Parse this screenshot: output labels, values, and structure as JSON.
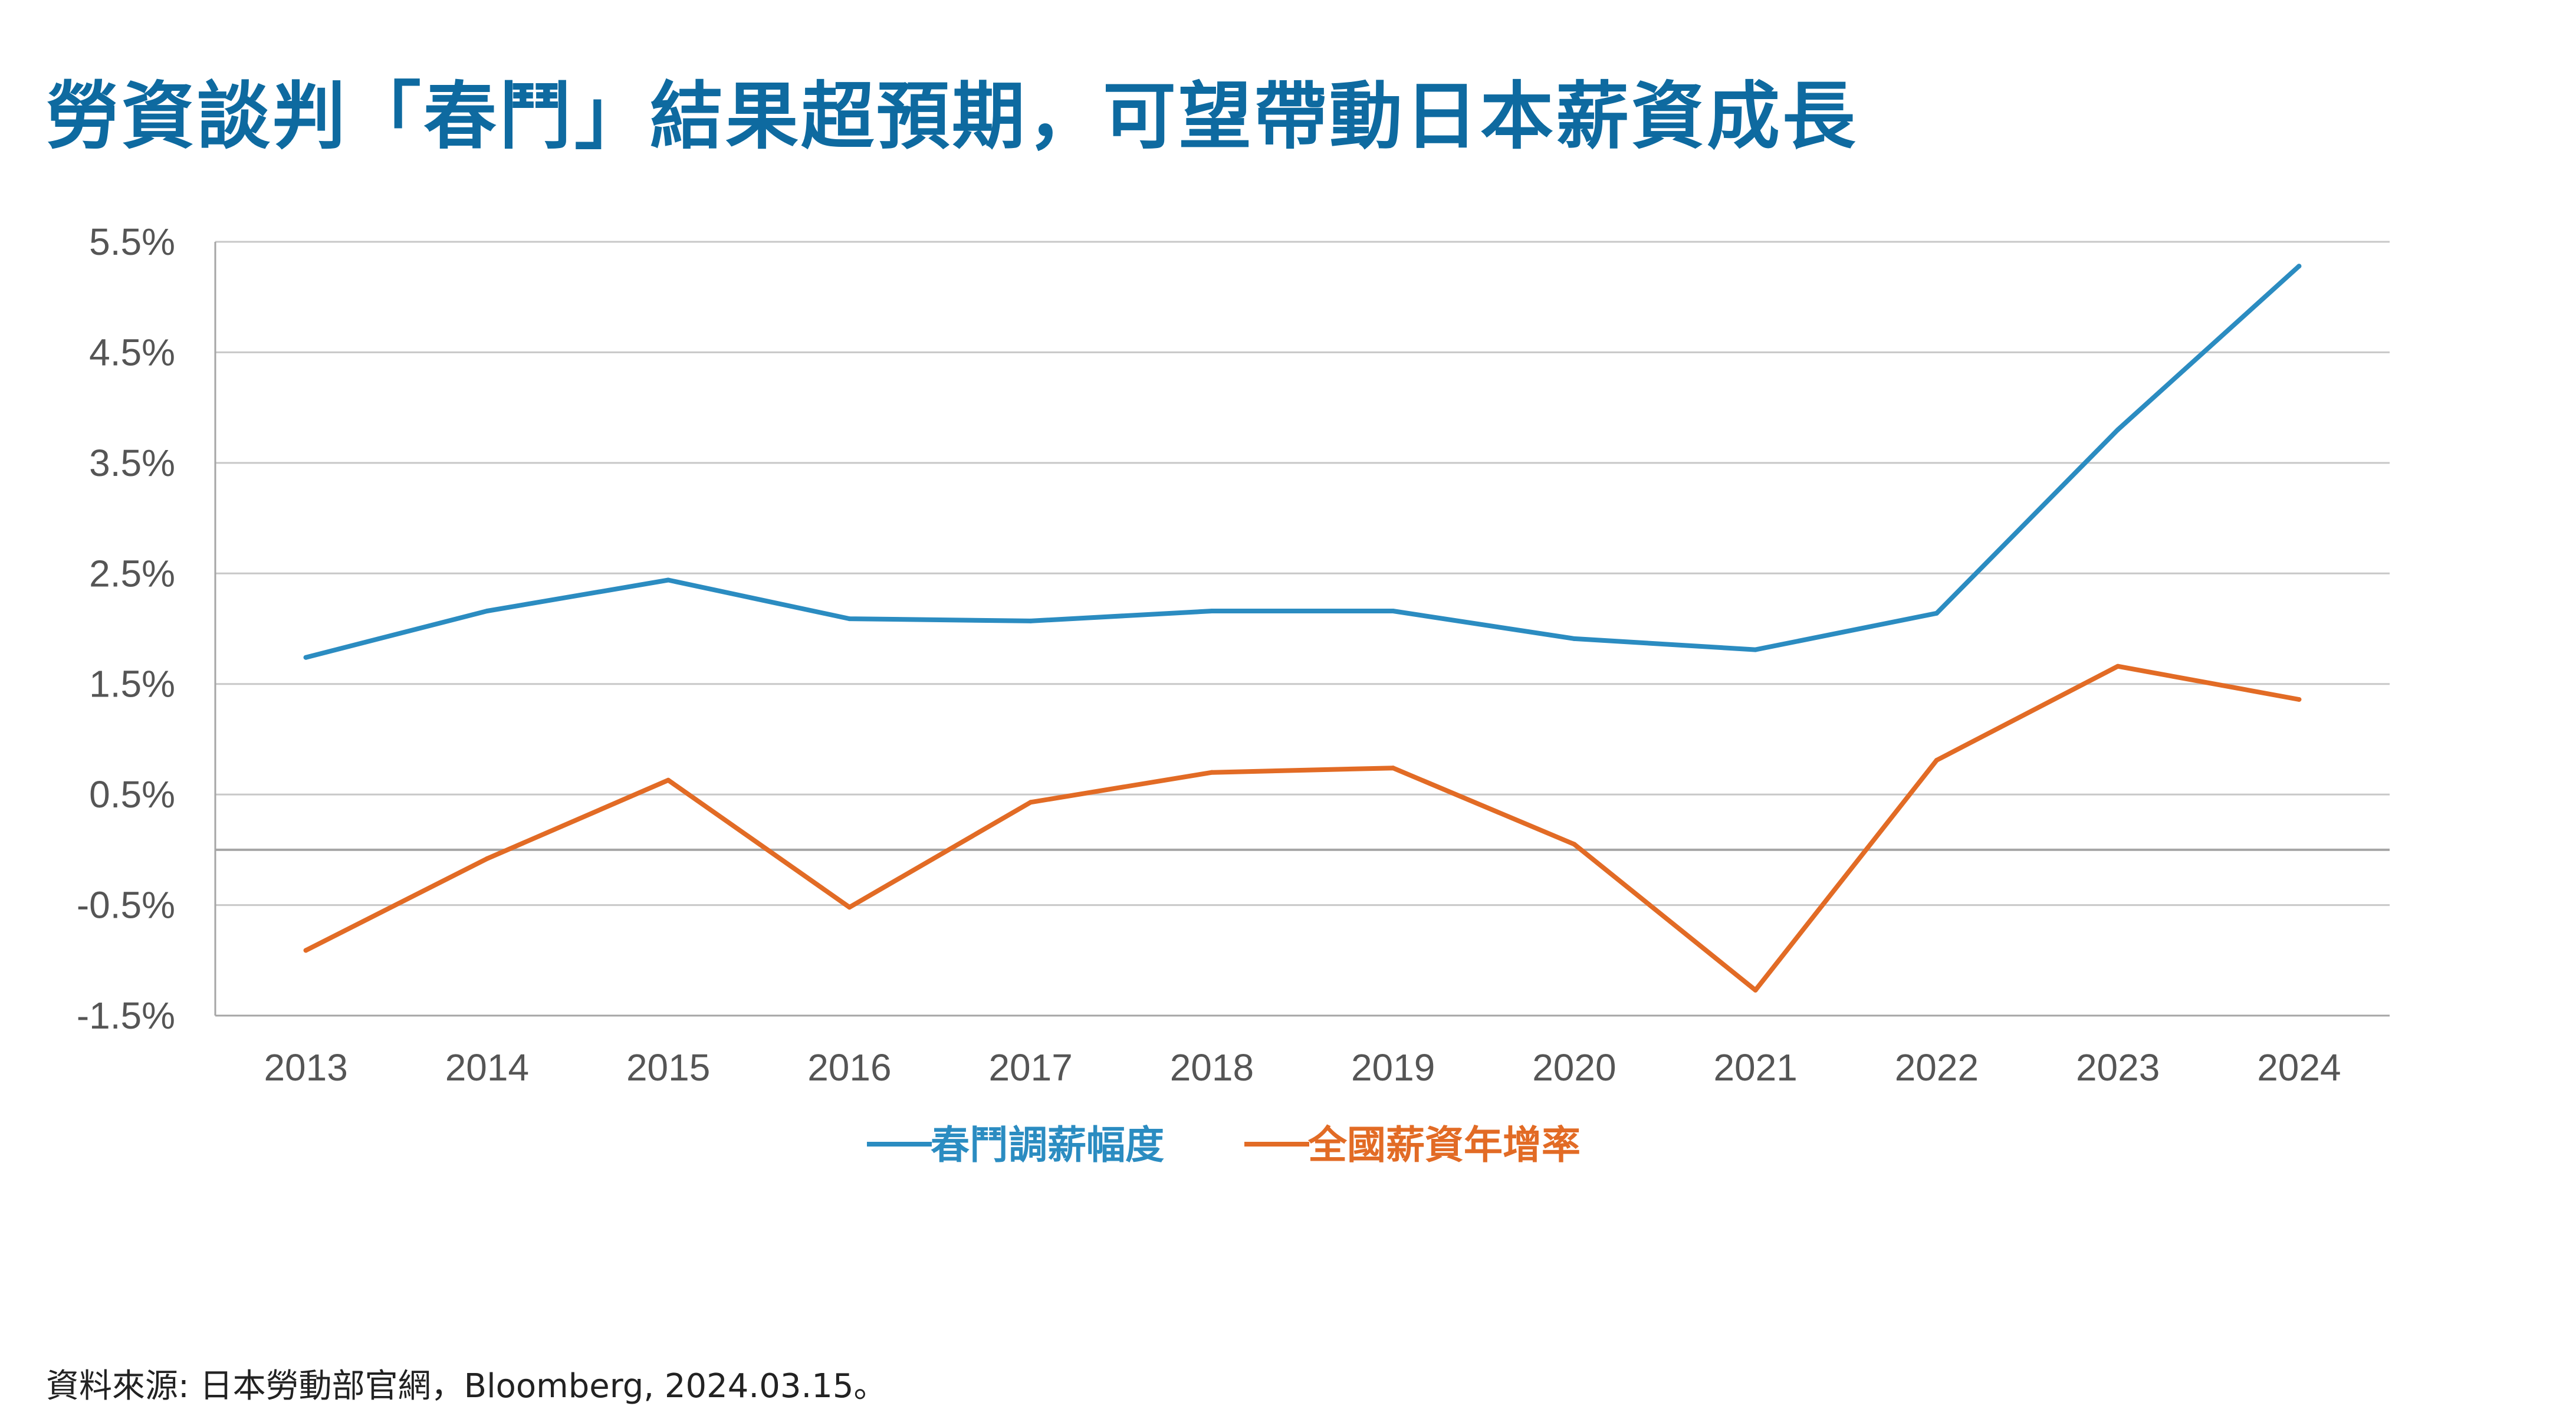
{
  "title": "勞資談判「春鬥」結果超預期，可望帶動日本薪資成長",
  "source": "資料來源: 日本勞動部官網，Bloomberg, 2024.03.15。",
  "colors": {
    "title": "#0e6aa0",
    "series_blue": "#2b8cc1",
    "series_orange": "#e26b25",
    "grid": "#c8c8c8",
    "axis": "#a6a6a6",
    "tick_text": "#555555"
  },
  "chart_data": {
    "type": "line",
    "title": "",
    "xlabel": "",
    "ylabel": "",
    "categories": [
      "2013",
      "2014",
      "2015",
      "2016",
      "2017",
      "2018",
      "2019",
      "2020",
      "2021",
      "2022",
      "2023",
      "2024"
    ],
    "ylim": [
      -1.5,
      5.5
    ],
    "yticks": [
      -1.5,
      -0.5,
      0.5,
      1.5,
      2.5,
      3.5,
      4.5,
      5.5
    ],
    "ytick_labels": [
      "-1.5%",
      "-0.5%",
      "0.5%",
      "1.5%",
      "2.5%",
      "3.5%",
      "4.5%",
      "5.5%"
    ],
    "zero_line": true,
    "grid": true,
    "legend_position": "bottom",
    "series": [
      {
        "name": "春鬥調薪幅度",
        "color": "#2b8cc1",
        "values": [
          1.74,
          2.16,
          2.44,
          2.09,
          2.07,
          2.16,
          2.16,
          1.91,
          1.81,
          2.14,
          3.8,
          5.28
        ]
      },
      {
        "name": "全國薪資年增率",
        "color": "#e26b25",
        "values": [
          -0.91,
          -0.08,
          0.63,
          -0.52,
          0.43,
          0.7,
          0.74,
          0.05,
          -1.27,
          0.81,
          1.66,
          1.36
        ]
      }
    ]
  }
}
